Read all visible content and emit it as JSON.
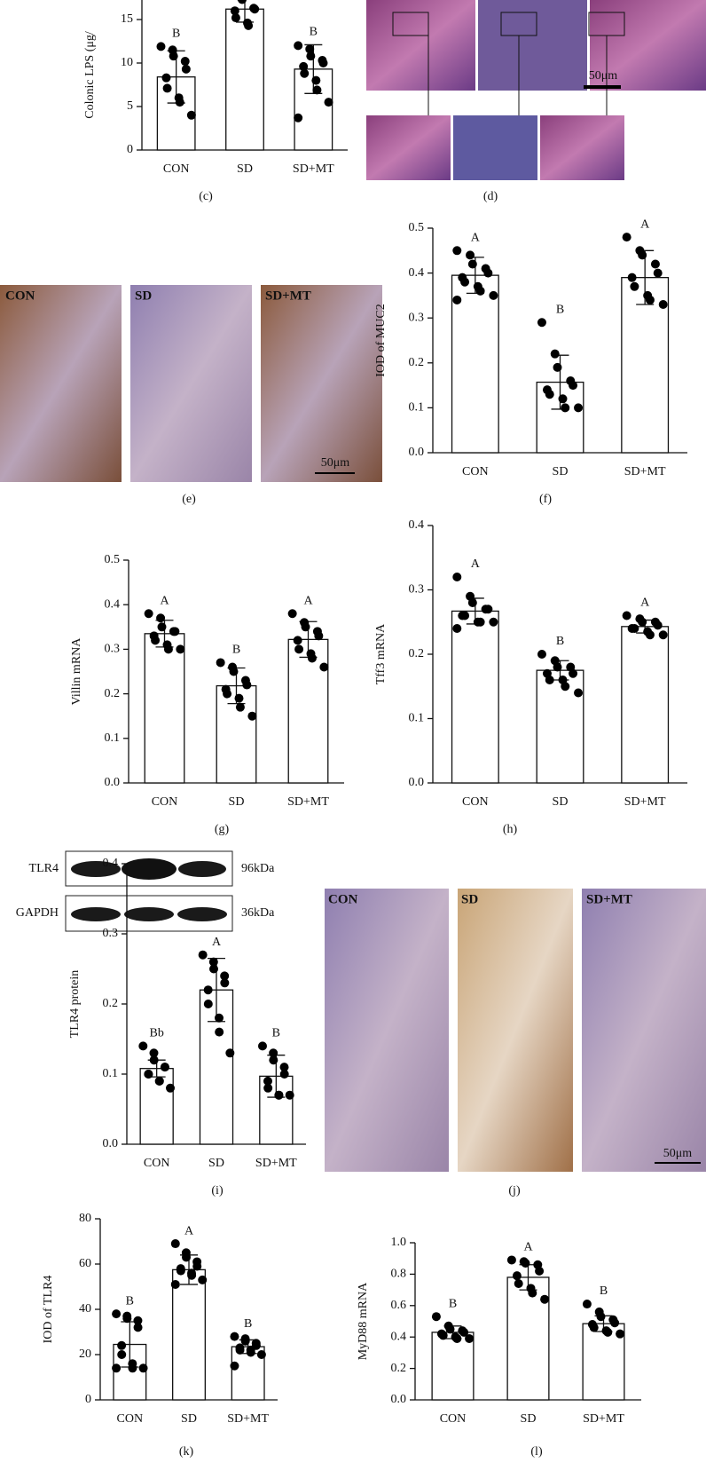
{
  "chart_data": [
    {
      "type": "bar",
      "panel": "(c)",
      "ylabel": "Colonic LPS (μg/",
      "categories": [
        "CON",
        "SD",
        "SD+MT"
      ],
      "values": [
        8.4,
        16.2,
        9.3
      ],
      "errors": [
        3.0,
        1.5,
        2.8
      ],
      "letters": [
        "B",
        null,
        "B"
      ],
      "points": [
        [
          11.9,
          11.5,
          10.8,
          10.2,
          9.3,
          8.3,
          7.1,
          6.0,
          5.5,
          4.0
        ],
        [
          18.0,
          17.5,
          17.3,
          16.3,
          16.2,
          16.0,
          15.2,
          14.6,
          14.3
        ],
        [
          12.0,
          11.6,
          10.8,
          10.3,
          10.0,
          9.6,
          8.8,
          8.0,
          6.9,
          5.5,
          3.7
        ]
      ],
      "ylim": [
        0,
        20
      ],
      "yticks": [
        0,
        5,
        10,
        15
      ]
    },
    {
      "type": "bar",
      "panel": "(f)",
      "ylabel": "IOD of MUC2",
      "categories": [
        "CON",
        "SD",
        "SD+MT"
      ],
      "values": [
        0.395,
        0.157,
        0.39
      ],
      "errors": [
        0.04,
        0.06,
        0.06
      ],
      "letters": [
        "A",
        "B",
        "A"
      ],
      "points": [
        [
          0.45,
          0.44,
          0.42,
          0.41,
          0.4,
          0.39,
          0.38,
          0.37,
          0.36,
          0.35,
          0.34
        ],
        [
          0.29,
          0.22,
          0.19,
          0.16,
          0.15,
          0.14,
          0.13,
          0.12,
          0.1,
          0.1
        ],
        [
          0.48,
          0.45,
          0.44,
          0.42,
          0.4,
          0.39,
          0.37,
          0.35,
          0.34,
          0.33
        ]
      ],
      "ylim": [
        0,
        0.5
      ],
      "yticks": [
        {
          "value": 0,
          "label": "0.0"
        },
        0.1,
        0.2,
        0.3,
        0.4,
        0.5
      ]
    },
    {
      "type": "bar",
      "panel": "(g)",
      "ylabel": "Villin mRNA",
      "categories": [
        "CON",
        "SD",
        "SD+MT"
      ],
      "values": [
        0.335,
        0.218,
        0.322
      ],
      "errors": [
        0.03,
        0.04,
        0.04
      ],
      "letters": [
        "A",
        "B",
        "A"
      ],
      "points": [
        [
          0.38,
          0.37,
          0.35,
          0.34,
          0.34,
          0.33,
          0.32,
          0.31,
          0.3,
          0.3
        ],
        [
          0.27,
          0.26,
          0.25,
          0.23,
          0.22,
          0.21,
          0.2,
          0.19,
          0.17,
          0.15
        ],
        [
          0.38,
          0.36,
          0.35,
          0.34,
          0.33,
          0.32,
          0.3,
          0.29,
          0.28,
          0.26
        ]
      ],
      "ylim": [
        0,
        0.5
      ],
      "yticks": [
        {
          "value": 0,
          "label": "0.0"
        },
        0.1,
        0.2,
        0.3,
        0.4,
        0.5
      ]
    },
    {
      "type": "bar",
      "panel": "(h)",
      "ylabel": "Tff3 mRNA",
      "categories": [
        "CON",
        "SD",
        "SD+MT"
      ],
      "values": [
        0.267,
        0.175,
        0.243
      ],
      "errors": [
        0.02,
        0.015,
        0.01
      ],
      "letters": [
        "A",
        "B",
        "A"
      ],
      "points": [
        [
          0.32,
          0.29,
          0.28,
          0.27,
          0.27,
          0.26,
          0.26,
          0.25,
          0.25,
          0.25,
          0.24
        ],
        [
          0.2,
          0.19,
          0.18,
          0.18,
          0.17,
          0.17,
          0.16,
          0.16,
          0.15,
          0.14
        ],
        [
          0.26,
          0.255,
          0.25,
          0.25,
          0.245,
          0.24,
          0.24,
          0.235,
          0.23,
          0.23
        ]
      ],
      "ylim": [
        0,
        0.4
      ],
      "yticks": [
        {
          "value": 0,
          "label": "0.0"
        },
        0.1,
        0.2,
        0.3,
        0.4
      ]
    },
    {
      "type": "bar",
      "panel": "(i)",
      "ylabel": "TLR4 protein",
      "categories": [
        "CON",
        "SD",
        "SD+MT"
      ],
      "values": [
        0.108,
        0.22,
        0.097
      ],
      "errors": [
        0.012,
        0.045,
        0.03
      ],
      "letters": [
        "Bb",
        "A",
        "B"
      ],
      "points": [
        [
          0.14,
          0.13,
          0.12,
          0.11,
          0.11,
          0.1,
          0.1,
          0.09,
          0.09,
          0.08
        ],
        [
          0.27,
          0.26,
          0.25,
          0.24,
          0.23,
          0.22,
          0.2,
          0.18,
          0.16,
          0.13
        ],
        [
          0.14,
          0.13,
          0.12,
          0.11,
          0.1,
          0.09,
          0.08,
          0.07,
          0.07,
          0.07
        ]
      ],
      "ylim": [
        0,
        0.4
      ],
      "yticks": [
        {
          "value": 0,
          "label": "0.0"
        },
        0.1,
        0.2,
        0.3,
        0.4
      ],
      "blot": {
        "bands": [
          "TLR4",
          "GAPDH"
        ],
        "sizes": [
          "96kDa",
          "36kDa"
        ]
      }
    },
    {
      "type": "bar",
      "panel": "(k)",
      "ylabel": "IOD of TLR4",
      "categories": [
        "CON",
        "SD",
        "SD+MT"
      ],
      "values": [
        24.5,
        57.5,
        23.5
      ],
      "errors": [
        10,
        6.5,
        3
      ],
      "letters": [
        "B",
        "A",
        "B"
      ],
      "points": [
        [
          38,
          37,
          36,
          35,
          32,
          24,
          20,
          16,
          14,
          14,
          14
        ],
        [
          69,
          65,
          63,
          61,
          59,
          58,
          57,
          56,
          55,
          53,
          51
        ],
        [
          28,
          27,
          26,
          25,
          24,
          23,
          22,
          22,
          21,
          20,
          15
        ]
      ],
      "ylim": [
        0,
        80
      ],
      "yticks": [
        0,
        20,
        40,
        60,
        80
      ]
    },
    {
      "type": "bar",
      "panel": "(l)",
      "ylabel": "MyD88 mRNA",
      "categories": [
        "CON",
        "SD",
        "SD+MT"
      ],
      "values": [
        0.43,
        0.78,
        0.485
      ],
      "errors": [
        0.04,
        0.08,
        0.05
      ],
      "letters": [
        "B",
        "A",
        "B"
      ],
      "points": [
        [
          0.53,
          0.47,
          0.45,
          0.44,
          0.43,
          0.42,
          0.41,
          0.4,
          0.39,
          0.39
        ],
        [
          0.89,
          0.88,
          0.87,
          0.86,
          0.82,
          0.79,
          0.74,
          0.71,
          0.68,
          0.64
        ],
        [
          0.61,
          0.56,
          0.53,
          0.51,
          0.49,
          0.48,
          0.46,
          0.44,
          0.43,
          0.42
        ]
      ],
      "ylim": [
        0,
        1
      ],
      "yticks": [
        {
          "value": 0,
          "label": "0.0"
        },
        0.2,
        0.4,
        0.6,
        0.8,
        {
          "value": 1,
          "label": "1.0"
        }
      ]
    }
  ],
  "images": [
    {
      "panel": "(d)",
      "scale": "50μm"
    },
    {
      "panel": "(e)",
      "groups": [
        "CON",
        "SD",
        "SD+MT"
      ],
      "scale": "50μm"
    },
    {
      "panel": "(j)",
      "groups": [
        "CON",
        "SD",
        "SD+MT"
      ],
      "scale": "50μm"
    }
  ]
}
